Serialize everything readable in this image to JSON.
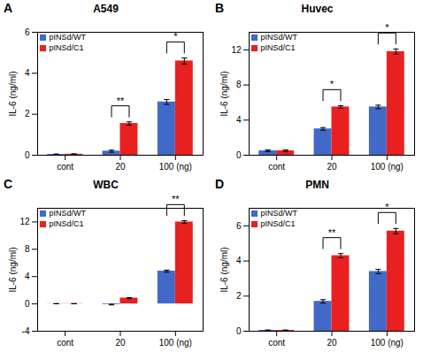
{
  "chart_data": [
    {
      "type": "bar",
      "title": "A549",
      "ylabel": "IL-6 (ng/ml)",
      "categories": [
        "cont",
        "20",
        "100 (ng)"
      ],
      "series": [
        {
          "name": "pINSd/WT",
          "color": "#4169c8",
          "values": [
            0.04,
            0.2,
            2.6
          ],
          "errors": [
            0.02,
            0.05,
            0.12
          ]
        },
        {
          "name": "pINSd/C1",
          "color": "#e82020",
          "values": [
            0.05,
            1.55,
            4.6
          ],
          "errors": [
            0.02,
            0.08,
            0.15
          ]
        }
      ],
      "ylim": [
        0,
        6
      ],
      "yticks": [
        0,
        2,
        4,
        6
      ],
      "legend": "upper left",
      "annotations": [
        {
          "text": "A"
        },
        {
          "text": "**",
          "category": "20"
        },
        {
          "text": "*",
          "category": "100 (ng)"
        }
      ]
    },
    {
      "type": "bar",
      "title": "Huvec",
      "ylabel": "IL-6 (ng/ml)",
      "categories": [
        "cont",
        "20",
        "100 (ng)"
      ],
      "series": [
        {
          "name": "pINSd/WT",
          "color": "#4169c8",
          "values": [
            0.5,
            3.0,
            5.5
          ],
          "errors": [
            0.1,
            0.15,
            0.2
          ]
        },
        {
          "name": "pINSd/C1",
          "color": "#e82020",
          "values": [
            0.5,
            5.5,
            11.8
          ],
          "errors": [
            0.1,
            0.15,
            0.3
          ]
        }
      ],
      "ylim": [
        0,
        14
      ],
      "yticks": [
        0,
        4,
        8,
        12
      ],
      "legend": "upper left",
      "annotations": [
        {
          "text": "B"
        },
        {
          "text": "*",
          "category": "20"
        },
        {
          "text": "*",
          "category": "100 (ng)"
        }
      ]
    },
    {
      "type": "bar",
      "title": "WBC",
      "ylabel": "IL-6 (ng/ml)",
      "categories": [
        "cont",
        "20",
        "100 (ng)"
      ],
      "series": [
        {
          "name": "pINSd/WT",
          "color": "#4169c8",
          "values": [
            0.03,
            -0.1,
            4.8
          ],
          "errors": [
            0.01,
            0.05,
            0.15
          ]
        },
        {
          "name": "pINSd/C1",
          "color": "#e82020",
          "values": [
            0.03,
            0.85,
            12.0
          ],
          "errors": [
            0.01,
            0.08,
            0.2
          ]
        }
      ],
      "ylim": [
        -4,
        14
      ],
      "yticks": [
        -4,
        0,
        4,
        8,
        12
      ],
      "legend": "upper left",
      "annotations": [
        {
          "text": "C"
        },
        {
          "text": "**",
          "category": "100 (ng)"
        }
      ]
    },
    {
      "type": "bar",
      "title": "PMN",
      "ylabel": "IL-6 (ng/ml)",
      "categories": [
        "cont",
        "20",
        "100 (ng)"
      ],
      "series": [
        {
          "name": "pINSd/WT",
          "color": "#4169c8",
          "values": [
            0.05,
            1.7,
            3.4
          ],
          "errors": [
            0.02,
            0.1,
            0.12
          ]
        },
        {
          "name": "pINSd/C1",
          "color": "#e82020",
          "values": [
            0.05,
            4.3,
            5.7
          ],
          "errors": [
            0.02,
            0.12,
            0.15
          ]
        }
      ],
      "ylim": [
        0,
        7
      ],
      "yticks": [
        0,
        2,
        4,
        6
      ],
      "legend": "upper left",
      "annotations": [
        {
          "text": "D"
        },
        {
          "text": "**",
          "category": "20"
        },
        {
          "text": "*",
          "category": "100 (ng)"
        }
      ]
    }
  ]
}
